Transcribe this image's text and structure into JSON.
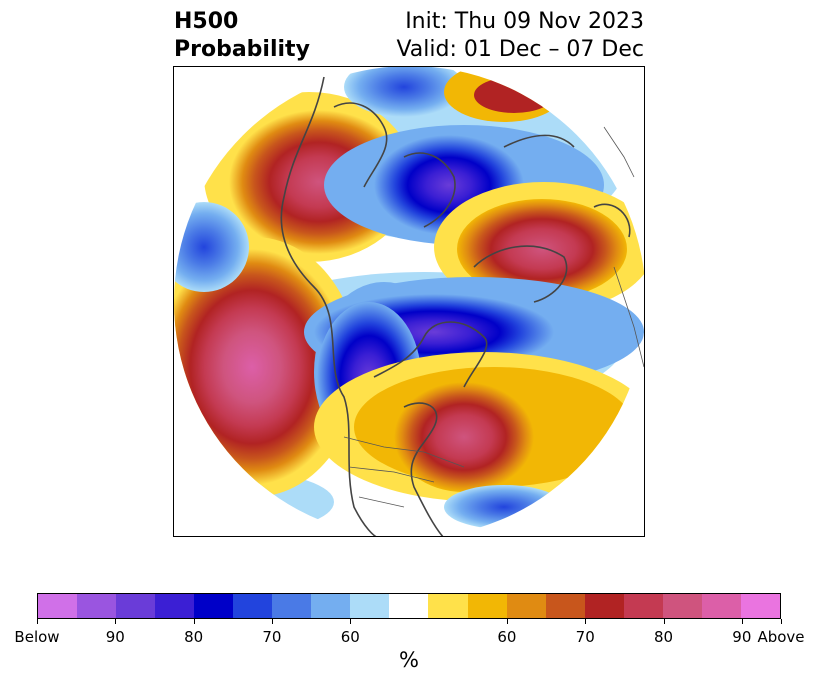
{
  "title": {
    "left_line1": "H500",
    "left_line2": "Probability",
    "right_line1": "Init: Thu 09 Nov 2023",
    "right_line2": "Valid: 01 Dec – 07 Dec"
  },
  "colorbar": {
    "unit": "%",
    "colors": [
      "#d070e8",
      "#9a55e0",
      "#6a3cd8",
      "#3b1fd4",
      "#0000c8",
      "#2244dd",
      "#4a7ae6",
      "#74aef0",
      "#acdcf8",
      "#ffffff",
      "#ffe14a",
      "#f2b705",
      "#e08b12",
      "#c8561c",
      "#b12323",
      "#c43a52",
      "#cf547e",
      "#dc5fa8",
      "#ea74e0"
    ],
    "tick_labels": [
      "Below",
      "90",
      "80",
      "70",
      "60",
      "60",
      "70",
      "80",
      "90",
      "Above"
    ]
  }
}
